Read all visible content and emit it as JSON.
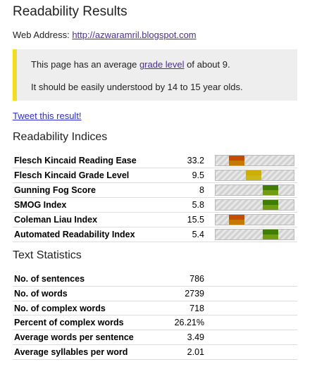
{
  "header": {
    "title": "Readability Results"
  },
  "web_address": {
    "label": "Web Address:",
    "url_text": "http://azwaramril.blogspot.com"
  },
  "summary": {
    "line1_prefix": "This page has an average ",
    "line1_link": "grade level",
    "line1_suffix": " of about 9.",
    "line2": "It should be easily understood by 14 to 15 year olds.",
    "accent_color": "#f2dd22"
  },
  "tweet_link": "Tweet this result!",
  "indices": {
    "heading": "Readability Indices",
    "rows": [
      {
        "name": "Flesch Kincaid Reading Ease",
        "value": "33.2",
        "level": 0.27,
        "color": "#e08a00"
      },
      {
        "name": "Flesch Kincaid Grade Level",
        "value": "9.5",
        "level": 0.49,
        "color": "#e5d21f"
      },
      {
        "name": "Gunning Fog Score",
        "value": "8",
        "level": 0.7,
        "color": "#7fb314"
      },
      {
        "name": "SMOG Index",
        "value": "5.8",
        "level": 0.7,
        "color": "#7fb314"
      },
      {
        "name": "Coleman Liau Index",
        "value": "15.5",
        "level": 0.27,
        "color": "#e08a00"
      },
      {
        "name": "Automated Readability Index",
        "value": "5.4",
        "level": 0.7,
        "color": "#7fb314"
      }
    ]
  },
  "statistics": {
    "heading": "Text Statistics",
    "rows": [
      {
        "name": "No. of sentences",
        "value": "786"
      },
      {
        "name": "No. of words",
        "value": "2739"
      },
      {
        "name": "No. of complex words",
        "value": "718"
      },
      {
        "name": "Percent of complex words",
        "value": "26.21%"
      },
      {
        "name": "Average words per sentence",
        "value": "3.49"
      },
      {
        "name": "Average syllables per word",
        "value": "2.01"
      }
    ]
  }
}
